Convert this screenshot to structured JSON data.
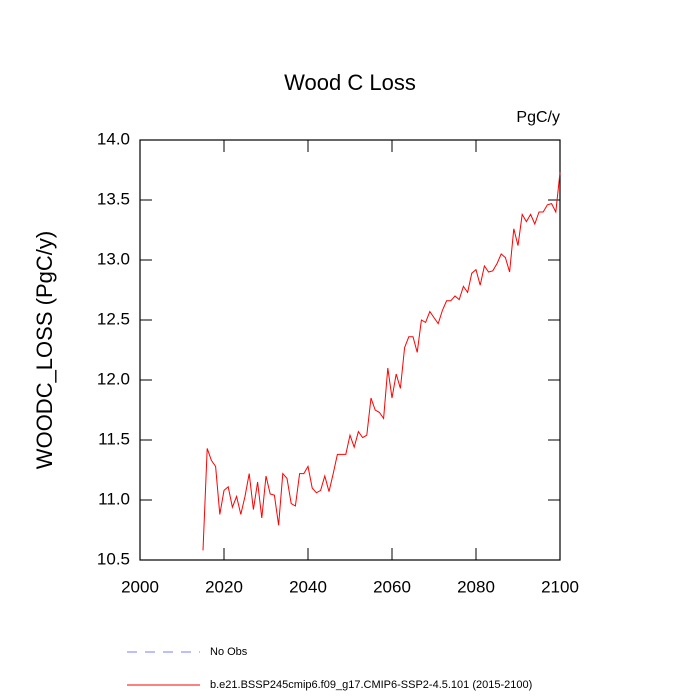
{
  "chart_data": {
    "type": "line",
    "title": "Wood C Loss",
    "units": "PgC/y",
    "y_label": "WOODC_LOSS  (PgC/y)",
    "x": [
      2015,
      2016,
      2017,
      2018,
      2019,
      2020,
      2021,
      2022,
      2023,
      2024,
      2025,
      2026,
      2027,
      2028,
      2029,
      2030,
      2031,
      2032,
      2033,
      2034,
      2035,
      2036,
      2037,
      2038,
      2039,
      2040,
      2041,
      2042,
      2043,
      2044,
      2045,
      2046,
      2047,
      2048,
      2049,
      2050,
      2051,
      2052,
      2053,
      2054,
      2055,
      2056,
      2057,
      2058,
      2059,
      2060,
      2061,
      2062,
      2063,
      2064,
      2065,
      2066,
      2067,
      2068,
      2069,
      2070,
      2071,
      2072,
      2073,
      2074,
      2075,
      2076,
      2077,
      2078,
      2079,
      2080,
      2081,
      2082,
      2083,
      2084,
      2085,
      2086,
      2087,
      2088,
      2089,
      2090,
      2091,
      2092,
      2093,
      2094,
      2095,
      2096,
      2097,
      2098,
      2099,
      2100
    ],
    "series": [
      {
        "name": "b.e21.BSSP245cmip6.f09_g17.CMIP6-SSP2-4.5.101 (2015-2100)",
        "color": "#ff0000",
        "values": [
          10.58,
          11.43,
          11.33,
          11.28,
          10.88,
          11.08,
          11.11,
          10.94,
          11.03,
          10.88,
          11.03,
          11.22,
          10.92,
          11.15,
          10.85,
          11.2,
          11.05,
          11.04,
          10.79,
          11.22,
          11.18,
          10.97,
          10.95,
          11.22,
          11.22,
          11.28,
          11.1,
          11.06,
          11.08,
          11.2,
          11.07,
          11.22,
          11.38,
          11.38,
          11.38,
          11.54,
          11.44,
          11.57,
          11.52,
          11.54,
          11.85,
          11.75,
          11.73,
          11.68,
          12.1,
          11.85,
          12.05,
          11.93,
          12.27,
          12.36,
          12.36,
          12.23,
          12.5,
          12.48,
          12.57,
          12.52,
          12.47,
          12.58,
          12.66,
          12.66,
          12.7,
          12.67,
          12.78,
          12.73,
          12.89,
          12.92,
          12.79,
          12.95,
          12.9,
          12.91,
          12.97,
          13.05,
          13.02,
          12.9,
          13.26,
          13.12,
          13.38,
          13.32,
          13.38,
          13.3,
          13.4,
          13.4,
          13.46,
          13.47,
          13.4,
          13.73
        ]
      }
    ],
    "obs_legend": {
      "name": "No Obs",
      "color": "#7b7bff",
      "dashed": true
    },
    "xlim": [
      2000,
      2100
    ],
    "xticks": [
      2000,
      2020,
      2040,
      2060,
      2080,
      2100
    ],
    "ylim": [
      10.5,
      14.0
    ],
    "yticks": [
      10.5,
      {
        "value": 11,
        "label": "11.0"
      },
      11.5,
      {
        "value": 12,
        "label": "12.0"
      },
      12.5,
      {
        "value": 13,
        "label": "13.0"
      },
      13.5,
      {
        "value": 14,
        "label": "14.0"
      }
    ]
  }
}
